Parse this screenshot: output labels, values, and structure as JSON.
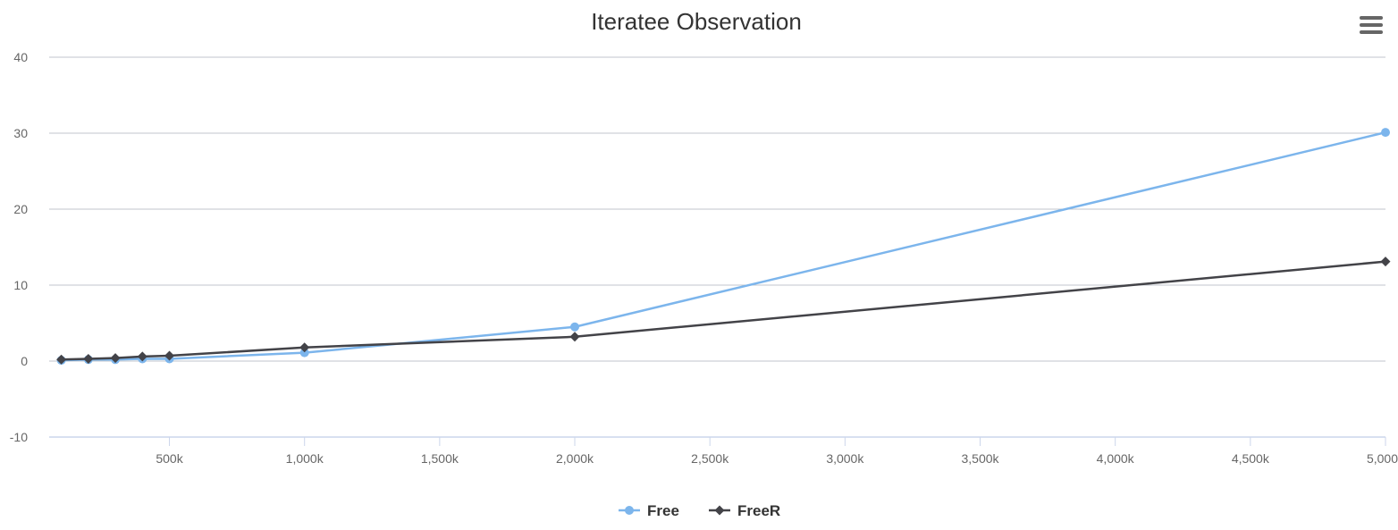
{
  "chart_data": {
    "type": "line",
    "title": "Iteratee Observation",
    "xlabel": "",
    "ylabel": "",
    "xlim": [
      55000,
      5000000
    ],
    "ylim": [
      -10,
      40
    ],
    "x_ticks": [
      500000,
      1000000,
      1500000,
      2000000,
      2500000,
      3000000,
      3500000,
      4000000,
      4500000,
      5000000
    ],
    "x_tick_labels": [
      "500k",
      "1,000k",
      "1,500k",
      "2,000k",
      "2,500k",
      "3,000k",
      "3,500k",
      "4,000k",
      "4,500k",
      "5,000k"
    ],
    "y_ticks": [
      -10,
      0,
      10,
      20,
      30,
      40
    ],
    "y_tick_labels": [
      "-10",
      "0",
      "10",
      "20",
      "30",
      "40"
    ],
    "grid": "horizontal",
    "legend": "bottom-center",
    "series": [
      {
        "name": "Free",
        "color": "#7cb5ec",
        "marker": "circle",
        "x": [
          100000,
          200000,
          300000,
          400000,
          500000,
          1000000,
          2000000,
          5000000
        ],
        "values": [
          0.1,
          0.2,
          0.2,
          0.3,
          0.3,
          1.1,
          4.5,
          30.1
        ]
      },
      {
        "name": "FreeR",
        "color": "#434348",
        "marker": "diamond",
        "x": [
          100000,
          200000,
          300000,
          400000,
          500000,
          1000000,
          2000000,
          5000000
        ],
        "values": [
          0.2,
          0.3,
          0.4,
          0.6,
          0.7,
          1.8,
          3.2,
          13.1
        ]
      }
    ]
  },
  "menu": {
    "icon": "hamburger-menu-icon"
  }
}
